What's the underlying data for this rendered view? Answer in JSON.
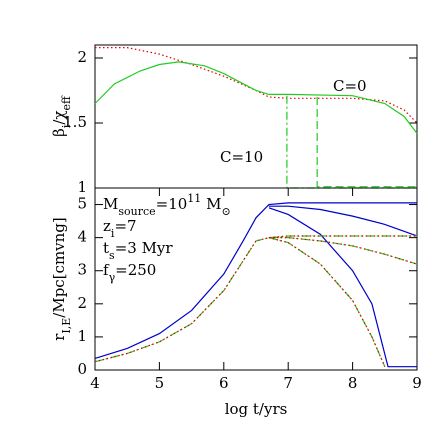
{
  "chart_data": [
    {
      "type": "line",
      "ylabel": [
        {
          "text": "β"
        },
        {
          "text": "i",
          "shift": "sub"
        },
        {
          "text": "/χ"
        },
        {
          "text": "eff",
          "shift": "sub"
        }
      ],
      "xlim": [
        4,
        9
      ],
      "ylim": [
        1,
        2.1
      ],
      "yticks": [
        1,
        1.5,
        2
      ],
      "annotations": [
        "C=0",
        "C=10"
      ],
      "series": [
        {
          "color": "#e00000",
          "style": "dotted",
          "x": [
            4,
            4.5,
            5,
            5.5,
            6,
            6.5,
            6.7,
            7,
            8,
            8.5,
            8.8,
            9
          ],
          "values": [
            2.08,
            2.08,
            2.03,
            1.95,
            1.86,
            1.75,
            1.7,
            1.69,
            1.69,
            1.67,
            1.6,
            1.5
          ]
        },
        {
          "color": "#22cc22",
          "style": "solid",
          "x": [
            4,
            4.3,
            4.7,
            5,
            5.3,
            5.7,
            6,
            6.5,
            6.7,
            7,
            8,
            8.5,
            8.8,
            9
          ],
          "values": [
            1.65,
            1.8,
            1.9,
            1.95,
            1.97,
            1.94,
            1.88,
            1.75,
            1.72,
            1.72,
            1.71,
            1.65,
            1.55,
            1.42
          ]
        },
        {
          "color": "#22cc22",
          "style": "dashdot",
          "x": [
            6.98,
            6.98,
            9
          ],
          "values": [
            1.71,
            1,
            1
          ]
        },
        {
          "color": "#22cc22",
          "style": "dashed",
          "x": [
            7.45,
            7.45,
            9
          ],
          "values": [
            1.7,
            1.01,
            1.01
          ]
        }
      ]
    },
    {
      "type": "line",
      "xlabel": "log t/yrs",
      "ylabel": [
        {
          "text": "r"
        },
        {
          "text": "I,E",
          "shift": "sub"
        },
        {
          "text": "/Mpc[cmvng]"
        }
      ],
      "xlim": [
        4,
        9
      ],
      "ylim": [
        0,
        5.5
      ],
      "xticks": [
        4,
        5,
        6,
        7,
        8,
        9
      ],
      "yticks": [
        0,
        1,
        2,
        3,
        4,
        5
      ],
      "annotations": [
        [
          {
            "text": "M"
          },
          {
            "text": "source",
            "shift": "sub"
          },
          {
            "text": "=10"
          },
          {
            "text": "11",
            "shift": "sup"
          },
          {
            "text": " M"
          },
          {
            "text": "⊙",
            "shift": "sub"
          }
        ],
        [
          {
            "text": "z"
          },
          {
            "text": "i",
            "shift": "sub"
          },
          {
            "text": "=7"
          }
        ],
        [
          {
            "text": "t"
          },
          {
            "text": "s",
            "shift": "sub"
          },
          {
            "text": "=3 Myr"
          }
        ],
        [
          {
            "text": "f"
          },
          {
            "text": "γ",
            "shift": "sub"
          },
          {
            "text": "=250"
          }
        ]
      ],
      "series": [
        {
          "color": "#0000cc",
          "style": "solid",
          "x": [
            4,
            4.5,
            5,
            5.5,
            6,
            6.3,
            6.5,
            6.7,
            7,
            8,
            9
          ],
          "values": [
            0.35,
            0.65,
            1.1,
            1.8,
            2.9,
            3.9,
            4.6,
            5.0,
            5.05,
            5.05,
            5.05
          ]
        },
        {
          "color": "#0000cc",
          "style": "solid",
          "x": [
            6.7,
            7,
            7.5,
            8,
            8.5,
            9
          ],
          "values": [
            4.95,
            4.95,
            4.85,
            4.65,
            4.4,
            4.05
          ]
        },
        {
          "color": "#0000cc",
          "style": "solid",
          "x": [
            6.7,
            7,
            7.5,
            8,
            8.3,
            8.55,
            9
          ],
          "values": [
            4.9,
            4.7,
            4.1,
            3.0,
            2.0,
            0.1,
            0.1
          ]
        },
        {
          "color": "#22cc22",
          "style": "dashdot",
          "x": [
            4,
            4.5,
            5,
            5.5,
            6,
            6.3,
            6.5,
            6.7,
            7,
            8,
            9
          ],
          "values": [
            0.25,
            0.5,
            0.85,
            1.4,
            2.4,
            3.3,
            3.9,
            4.0,
            4.05,
            4.05,
            4.05
          ]
        },
        {
          "color": "#22cc22",
          "style": "dashdot",
          "x": [
            6.7,
            7,
            7.5,
            8,
            8.5,
            9
          ],
          "values": [
            4.0,
            4.0,
            3.9,
            3.75,
            3.5,
            3.2
          ]
        },
        {
          "color": "#22cc22",
          "style": "dashdot",
          "x": [
            6.7,
            7,
            7.5,
            8,
            8.3,
            8.5
          ],
          "values": [
            4.0,
            3.85,
            3.2,
            2.1,
            1.0,
            0.1
          ]
        },
        {
          "color": "#e00000",
          "style": "dotted",
          "x": [
            4,
            4.5,
            5,
            5.5,
            6,
            6.3,
            6.5,
            6.7,
            7,
            8,
            9
          ],
          "values": [
            0.25,
            0.5,
            0.85,
            1.4,
            2.4,
            3.3,
            3.9,
            4.0,
            4.05,
            4.05,
            4.05
          ]
        },
        {
          "color": "#e00000",
          "style": "dotted",
          "x": [
            6.7,
            7,
            7.5,
            8,
            8.5,
            9
          ],
          "values": [
            4.0,
            4.0,
            3.9,
            3.75,
            3.5,
            3.2
          ]
        },
        {
          "color": "#e00000",
          "style": "dotted",
          "x": [
            6.7,
            7,
            7.5,
            8,
            8.3,
            8.5
          ],
          "values": [
            4.0,
            3.85,
            3.2,
            2.1,
            1.0,
            0.1
          ]
        }
      ]
    }
  ]
}
